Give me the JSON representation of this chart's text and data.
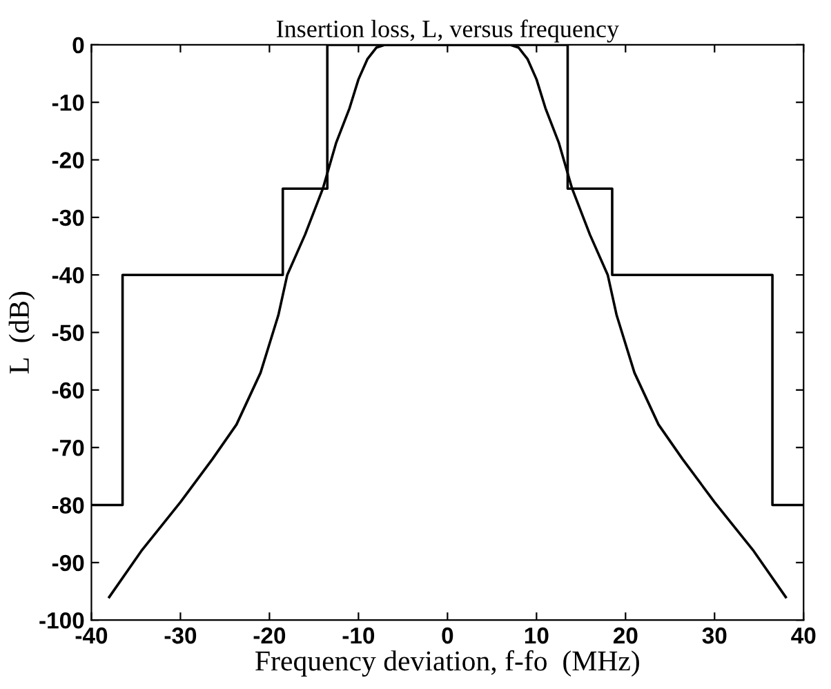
{
  "chart_data": {
    "type": "line",
    "title": "Insertion loss, L, versus frequency",
    "xlabel": "Frequency deviation, f-fo  (MHz)",
    "ylabel": "L  (dB)",
    "series": [
      {
        "color": "#000000",
        "x": [
          -40,
          -36.5,
          -36.5,
          -18.5,
          -18.5,
          -13.5,
          -13.5,
          13.5,
          13.5,
          18.5,
          18.5,
          36.5,
          36.5,
          40
        ],
        "values": [
          -80,
          -80,
          -40,
          -40,
          -25,
          -25,
          0,
          0,
          -25,
          -25,
          -40,
          -40,
          -80,
          -80
        ]
      },
      {
        "color": "#000000",
        "x": [
          -38,
          -34.4,
          -30,
          -26.4,
          -23.7,
          -21,
          -19,
          -18,
          -16,
          -14,
          -12.5,
          -11,
          -10,
          -9,
          -8,
          -7,
          0,
          7,
          8,
          9,
          10,
          11,
          12.5,
          14,
          16,
          18,
          19,
          21,
          23.7,
          26.4,
          30,
          34.4,
          38
        ],
        "values": [
          -96,
          -88,
          -79.5,
          -72,
          -66,
          -57,
          -47,
          -40,
          -33,
          -25,
          -17,
          -11,
          -6,
          -2.5,
          -0.5,
          0,
          0,
          0,
          -0.5,
          -2.5,
          -6,
          -11,
          -17,
          -25,
          -33,
          -40,
          -47,
          -57,
          -66,
          -72,
          -79.5,
          -88,
          -96
        ]
      }
    ],
    "xlim": [
      -40,
      40
    ],
    "ylim": [
      -100,
      0
    ],
    "xticks": [
      -40,
      -30,
      -20,
      -10,
      0,
      10,
      20,
      30,
      40
    ],
    "yticks": [
      -100,
      -90,
      -80,
      -70,
      -60,
      -50,
      -40,
      -30,
      -20,
      -10,
      0
    ],
    "grid": false,
    "legend": false,
    "marker": "none",
    "line_style": "solid"
  }
}
